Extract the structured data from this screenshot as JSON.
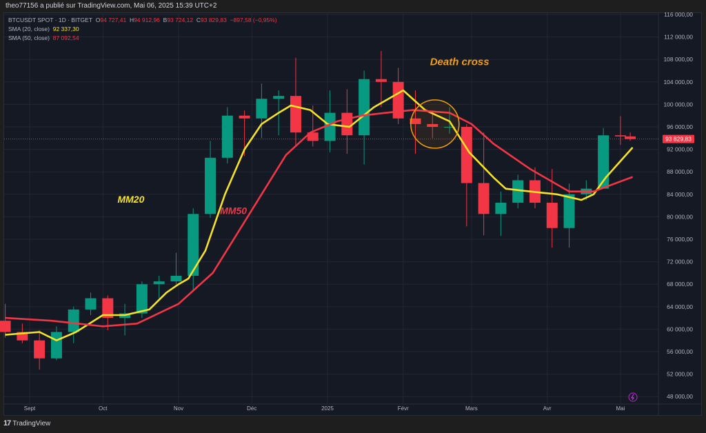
{
  "header": {
    "published": "theo77156 a publié sur TradingView.com, Mai 06, 2025 15:39 UTC+2"
  },
  "legend": {
    "symbol": "BTCUSDT SPOT · 1D · BITGET",
    "o_label": "O",
    "o": "94 727,41",
    "h_label": "H",
    "h": "94 912,96",
    "b_label": "B",
    "b": "93 724,12",
    "c_label": "C",
    "c": "93 829,83",
    "change": "−897,58 (−0,95%)",
    "sma20_label": "SMA (20, close)",
    "sma20_value": "92 337,30",
    "sma50_label": "SMA (50, close)",
    "sma50_value": "87 092,54"
  },
  "footer": {
    "logo": "TradingView",
    "logo_mark": "17"
  },
  "colors": {
    "up": "#089981",
    "down": "#f23645",
    "sma20": "#f7e325",
    "sma50": "#f23645",
    "annotation": "#f59e0b",
    "background": "#151924",
    "lightning": "#9c27b0"
  },
  "icons": {
    "lightning": "lightning-icon"
  },
  "chart_data": {
    "type": "candlestick",
    "grid": true,
    "ylim": [
      48000,
      116000
    ],
    "y_ticks": [
      "116 000,00",
      "112 000,00",
      "108 000,00",
      "104 000,00",
      "100 000,00",
      "96 000,00",
      "92 000,00",
      "88 000,00",
      "84 000,00",
      "80 000,00",
      "76 000,00",
      "72 000,00",
      "68 000,00",
      "64 000,00",
      "60 000,00",
      "56 000,00",
      "52 000,00",
      "48 000,00"
    ],
    "y_tick_values": [
      116000,
      112000,
      108000,
      104000,
      100000,
      96000,
      92000,
      88000,
      84000,
      80000,
      76000,
      72000,
      68000,
      64000,
      60000,
      56000,
      52000,
      48000
    ],
    "x_ticks": [
      {
        "label": "Sept",
        "date": "2024-09-01"
      },
      {
        "label": "Oct",
        "date": "2024-10-01"
      },
      {
        "label": "Nov",
        "date": "2024-11-01"
      },
      {
        "label": "Déc",
        "date": "2024-12-01"
      },
      {
        "label": "2025",
        "date": "2025-01-01"
      },
      {
        "label": "Févr",
        "date": "2025-02-01"
      },
      {
        "label": "Mars",
        "date": "2025-03-01"
      },
      {
        "label": "Avr",
        "date": "2025-04-01"
      },
      {
        "label": "Mai",
        "date": "2025-05-01"
      }
    ],
    "last_price": 93829.83,
    "last_price_label": "93 829,83",
    "candles": [
      [
        "2024-08-22",
        61500,
        64500,
        58500,
        59500
      ],
      [
        "2024-08-29",
        59500,
        61000,
        57500,
        58000
      ],
      [
        "2024-09-05",
        58000,
        59800,
        52800,
        54800
      ],
      [
        "2024-09-12",
        54800,
        60500,
        54500,
        59500
      ],
      [
        "2024-09-19",
        59500,
        64000,
        57500,
        63500
      ],
      [
        "2024-09-26",
        63500,
        66500,
        62500,
        65500
      ],
      [
        "2024-10-03",
        65500,
        66000,
        59800,
        62000
      ],
      [
        "2024-10-10",
        62000,
        64500,
        58900,
        62800
      ],
      [
        "2024-10-17",
        62800,
        68500,
        62000,
        68000
      ],
      [
        "2024-10-24",
        68000,
        69500,
        65500,
        68500
      ],
      [
        "2024-10-31",
        68500,
        73600,
        68000,
        69500
      ],
      [
        "2024-11-07",
        69500,
        81500,
        66800,
        80500
      ],
      [
        "2024-11-14",
        80500,
        93500,
        79800,
        90500
      ],
      [
        "2024-11-21",
        90500,
        99500,
        89500,
        98000
      ],
      [
        "2024-11-28",
        98000,
        98900,
        90800,
        97500
      ],
      [
        "2024-12-05",
        97500,
        103700,
        94000,
        101000
      ],
      [
        "2024-12-12",
        101000,
        102500,
        94500,
        101500
      ],
      [
        "2024-12-19",
        101500,
        108300,
        92500,
        95000
      ],
      [
        "2024-12-26",
        95000,
        99800,
        92500,
        93500
      ],
      [
        "2025-01-02",
        93500,
        102500,
        91500,
        98500
      ],
      [
        "2025-01-09",
        98500,
        102700,
        91200,
        94500
      ],
      [
        "2025-01-16",
        94500,
        106000,
        89300,
        104500
      ],
      [
        "2025-01-23",
        104500,
        109500,
        99500,
        104000
      ],
      [
        "2025-01-30",
        104000,
        106500,
        96500,
        97500
      ],
      [
        "2025-02-06",
        97500,
        102500,
        91200,
        96500
      ],
      [
        "2025-02-13",
        96500,
        98500,
        94000,
        96000
      ],
      [
        "2025-02-20",
        96000,
        99500,
        94800,
        96000
      ],
      [
        "2025-02-27",
        96000,
        96500,
        78300,
        86000
      ],
      [
        "2025-03-06",
        86000,
        95000,
        76700,
        80500
      ],
      [
        "2025-03-13",
        80500,
        84500,
        76600,
        82500
      ],
      [
        "2025-03-20",
        82500,
        87500,
        81500,
        86500
      ],
      [
        "2025-03-27",
        86500,
        88800,
        81500,
        82500
      ],
      [
        "2025-04-03",
        82500,
        88500,
        74500,
        78000
      ],
      [
        "2025-04-10",
        78000,
        85900,
        74500,
        84000
      ],
      [
        "2025-04-17",
        84000,
        86500,
        83000,
        85000
      ],
      [
        "2025-04-24",
        85000,
        95800,
        85000,
        94500
      ],
      [
        "2025-05-01",
        94500,
        97900,
        92800,
        94300
      ],
      [
        "2025-05-05",
        94300,
        95000,
        93500,
        93830
      ]
    ],
    "series": [
      {
        "name": "MM20",
        "indicator": "SMA (20, close)",
        "color": "#f7e325",
        "points": [
          [
            "2024-08-22",
            59000
          ],
          [
            "2024-09-05",
            59500
          ],
          [
            "2024-09-12",
            58000
          ],
          [
            "2024-09-20",
            59500
          ],
          [
            "2024-10-01",
            62500
          ],
          [
            "2024-10-10",
            62500
          ],
          [
            "2024-10-20",
            63500
          ],
          [
            "2024-10-27",
            66500
          ],
          [
            "2024-11-01",
            68000
          ],
          [
            "2024-11-05",
            69000
          ],
          [
            "2024-11-12",
            74000
          ],
          [
            "2024-11-20",
            84000
          ],
          [
            "2024-11-28",
            92000
          ],
          [
            "2024-12-05",
            96500
          ],
          [
            "2024-12-12",
            98500
          ],
          [
            "2024-12-17",
            99800
          ],
          [
            "2024-12-25",
            99000
          ],
          [
            "2025-01-01",
            96500
          ],
          [
            "2025-01-10",
            96000
          ],
          [
            "2025-01-20",
            99500
          ],
          [
            "2025-01-28",
            101500
          ],
          [
            "2025-02-01",
            102500
          ],
          [
            "2025-02-10",
            99000
          ],
          [
            "2025-02-20",
            97000
          ],
          [
            "2025-02-28",
            91500
          ],
          [
            "2025-03-10",
            87000
          ],
          [
            "2025-03-15",
            85000
          ],
          [
            "2025-03-25",
            84500
          ],
          [
            "2025-04-05",
            84000
          ],
          [
            "2025-04-10",
            83500
          ],
          [
            "2025-04-15",
            83000
          ],
          [
            "2025-04-20",
            84000
          ],
          [
            "2025-04-25",
            87000
          ],
          [
            "2025-05-06",
            92337.3
          ]
        ]
      },
      {
        "name": "MM50",
        "indicator": "SMA (50, close)",
        "color": "#f23645",
        "points": [
          [
            "2024-08-22",
            62000
          ],
          [
            "2024-09-10",
            61500
          ],
          [
            "2024-10-01",
            60500
          ],
          [
            "2024-10-15",
            61000
          ],
          [
            "2024-11-01",
            64500
          ],
          [
            "2024-11-15",
            70000
          ],
          [
            "2024-11-25",
            77000
          ],
          [
            "2024-12-05",
            84000
          ],
          [
            "2024-12-15",
            91000
          ],
          [
            "2024-12-25",
            95000
          ],
          [
            "2025-01-05",
            97000
          ],
          [
            "2025-01-15",
            98000
          ],
          [
            "2025-01-25",
            98500
          ],
          [
            "2025-02-05",
            99000
          ],
          [
            "2025-02-20",
            98500
          ],
          [
            "2025-03-01",
            96500
          ],
          [
            "2025-03-10",
            93000
          ],
          [
            "2025-03-25",
            88500
          ],
          [
            "2025-04-10",
            84500
          ],
          [
            "2025-04-20",
            84500
          ],
          [
            "2025-05-06",
            87092.54
          ]
        ]
      }
    ],
    "annotations": [
      {
        "text": "Death cross",
        "color": "#f59e0b",
        "date": "2025-02-12",
        "value": 107000
      },
      {
        "text": "MM20",
        "color": "#f7e325",
        "date": "2024-10-07",
        "value": 82500
      },
      {
        "text": "MM50",
        "color": "#f23645",
        "date": "2024-11-18",
        "value": 80500
      }
    ],
    "death_cross_circle": {
      "date": "2025-02-14",
      "value": 96500
    }
  }
}
